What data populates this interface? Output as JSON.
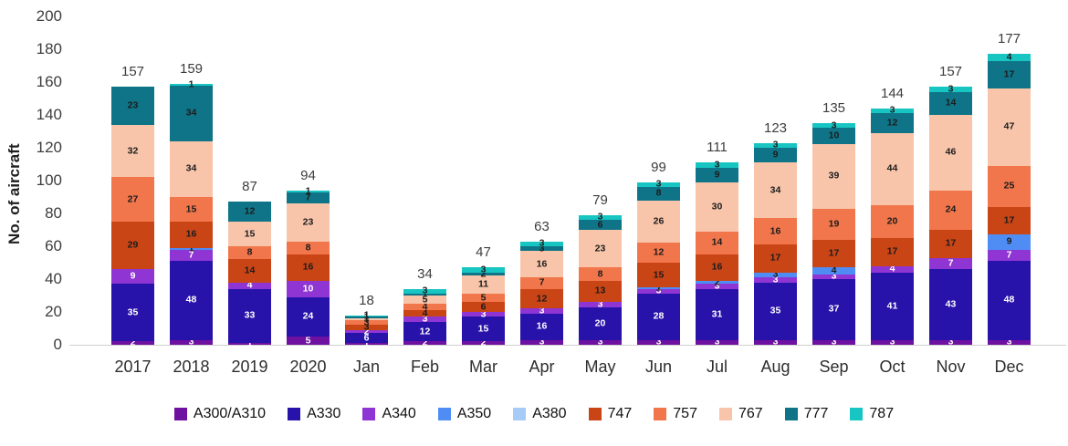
{
  "chart_data": {
    "type": "bar",
    "variant": "stacked",
    "title": "",
    "ylabel": "No. of aircraft",
    "xlabel": "",
    "ylim": [
      0,
      200
    ],
    "ytick_step": 20,
    "grid": false,
    "legend_position": "bottom",
    "categories": [
      "2017",
      "2018",
      "2019",
      "2020",
      "Jan",
      "Feb",
      "Mar",
      "Apr",
      "May",
      "Jun",
      "Jul",
      "Aug",
      "Sep",
      "Oct",
      "Nov",
      "Dec"
    ],
    "totals": [
      157,
      159,
      87,
      94,
      18,
      34,
      47,
      63,
      79,
      99,
      111,
      123,
      135,
      144,
      157,
      177
    ],
    "series": [
      {
        "name": "A300/A310",
        "color": "#6e11a0",
        "label_color": "#ffffff",
        "values": [
          2,
          3,
          1,
          5,
          1,
          2,
          2,
          3,
          3,
          3,
          3,
          3,
          3,
          3,
          3,
          3
        ]
      },
      {
        "name": "A330",
        "color": "#2713a9",
        "label_color": "#ffffff",
        "values": [
          35,
          48,
          33,
          24,
          6,
          12,
          15,
          16,
          20,
          28,
          31,
          35,
          37,
          41,
          43,
          48
        ]
      },
      {
        "name": "A340",
        "color": "#8f35d3",
        "label_color": "#ffffff",
        "values": [
          9,
          7,
          4,
          10,
          2,
          3,
          3,
          3,
          3,
          3,
          3,
          3,
          3,
          4,
          7,
          7
        ]
      },
      {
        "name": "A350",
        "color": "#4f8df5",
        "label_color": "#1c1c1c",
        "values": [
          0,
          1,
          0,
          0,
          0,
          0,
          0,
          0,
          0,
          1,
          2,
          3,
          4,
          0,
          0,
          9
        ]
      },
      {
        "name": "A380",
        "color": "#a7cbf7",
        "label_color": "#1c1c1c",
        "values": [
          0,
          0,
          0,
          0,
          0,
          0,
          0,
          0,
          0,
          0,
          0,
          0,
          0,
          0,
          0,
          0
        ]
      },
      {
        "name": "747",
        "color": "#c94516",
        "label_color": "#1c1c1c",
        "values": [
          29,
          16,
          14,
          16,
          3,
          4,
          6,
          12,
          13,
          15,
          16,
          17,
          17,
          17,
          17,
          17
        ]
      },
      {
        "name": "757",
        "color": "#f1764b",
        "label_color": "#1c1c1c",
        "values": [
          27,
          15,
          8,
          8,
          3,
          4,
          5,
          7,
          8,
          12,
          14,
          16,
          19,
          20,
          24,
          25
        ]
      },
      {
        "name": "767",
        "color": "#f8c5aa",
        "label_color": "#1c1c1c",
        "values": [
          32,
          34,
          15,
          23,
          1,
          5,
          11,
          16,
          23,
          26,
          30,
          34,
          39,
          44,
          46,
          47
        ]
      },
      {
        "name": "777",
        "color": "#0f7487",
        "label_color": "#1c1c1c",
        "values": [
          23,
          34,
          12,
          7,
          1,
          1,
          2,
          3,
          6,
          8,
          9,
          9,
          10,
          12,
          14,
          17
        ]
      },
      {
        "name": "787",
        "color": "#17c6c2",
        "label_color": "#1c1c1c",
        "values": [
          0,
          1,
          0,
          1,
          1,
          3,
          3,
          3,
          3,
          3,
          3,
          3,
          3,
          3,
          3,
          4
        ]
      }
    ]
  },
  "colors": {
    "axis_text": "#3d3d3d",
    "baseline": "#cfcfcf",
    "total_label": "#3d3d3d"
  }
}
